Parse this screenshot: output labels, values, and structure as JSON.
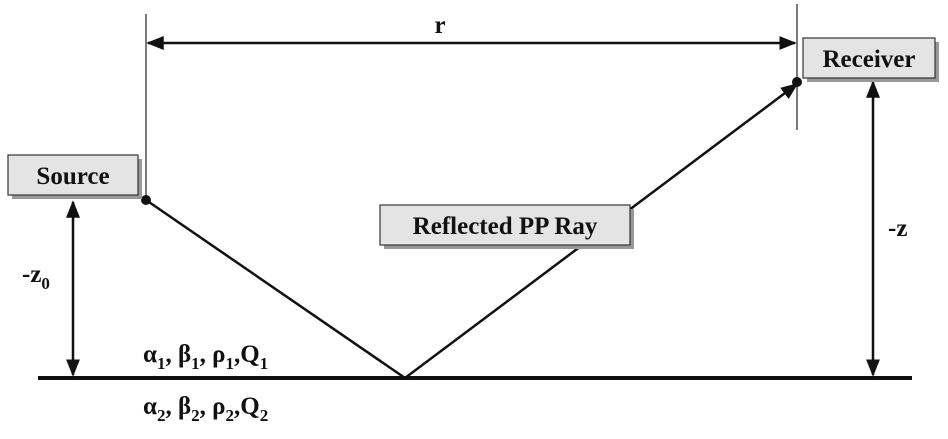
{
  "labels": {
    "distance": "r",
    "source": "Source",
    "receiver": "Receiver",
    "ray": "Reflected PP Ray",
    "receiver_depth": "-z",
    "source_depth": {
      "text": "-z",
      "sub": "0"
    }
  },
  "upper_layer": [
    {
      "text": "α",
      "sub": "1"
    },
    {
      "text": ", β",
      "sub": "1"
    },
    {
      "text": ", ρ",
      "sub": "1"
    },
    {
      "text": ",Q",
      "sub": "1"
    }
  ],
  "lower_layer": [
    {
      "text": "α",
      "sub": "2"
    },
    {
      "text": ", β",
      "sub": "2"
    },
    {
      "text": ", ρ",
      "sub": "2"
    },
    {
      "text": ",Q",
      "sub": "2"
    }
  ]
}
